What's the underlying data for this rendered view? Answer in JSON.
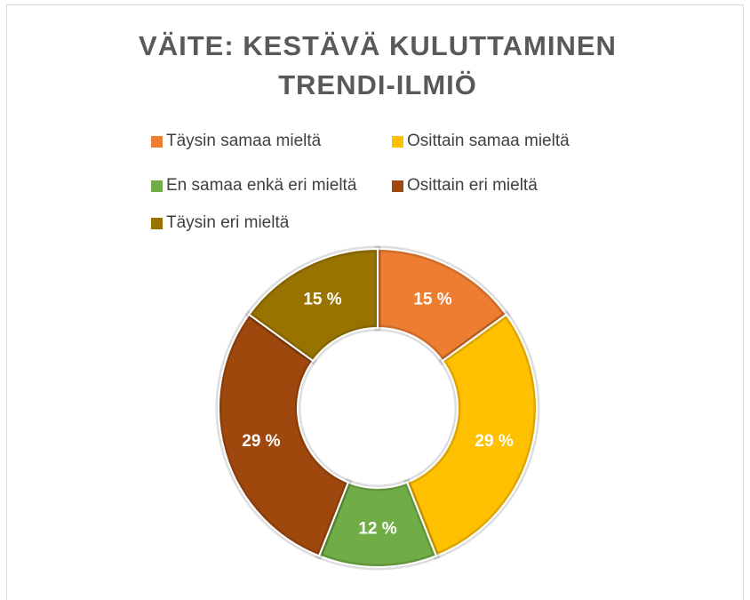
{
  "chart_data": {
    "type": "donut",
    "title": "VÄITE: KESTÄVÄ KULUTTAMINEN TRENDI-ILMIÖ",
    "categories": [
      "Täysin samaa mieltä",
      "Osittain samaa mieltä",
      "En samaa enkä eri mieltä",
      "Osittain eri mieltä",
      "Täysin eri mieltä"
    ],
    "values": [
      15,
      29,
      12,
      29,
      15
    ],
    "value_labels": [
      "15 %",
      "29 %",
      "12 %",
      "29 %",
      "15 %"
    ],
    "colors": [
      "#ED7D31",
      "#FFC000",
      "#70AD47",
      "#9E480E",
      "#997300"
    ],
    "legend": "top"
  }
}
